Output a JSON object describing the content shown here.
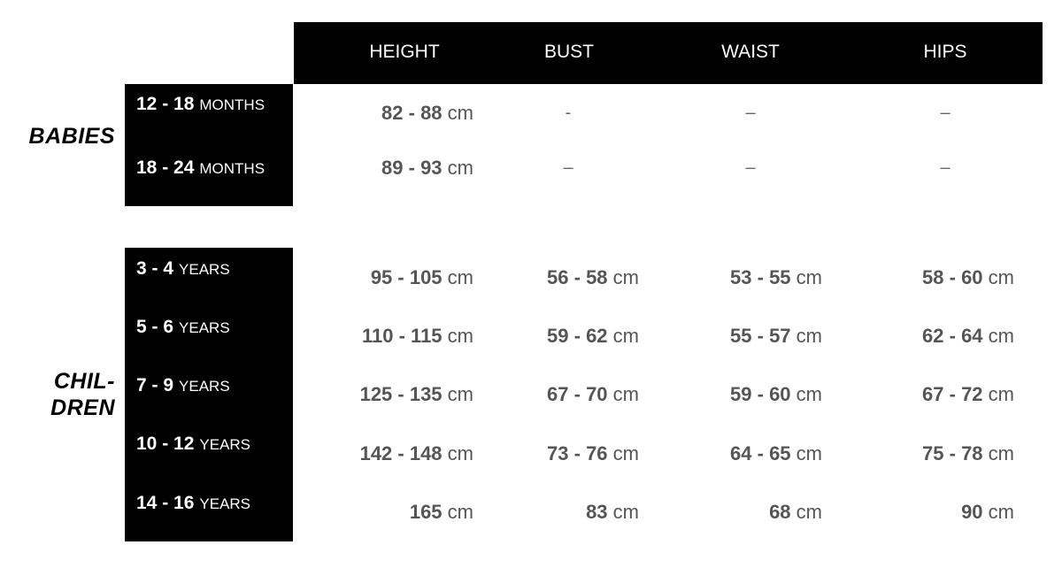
{
  "columns": [
    "HEIGHT",
    "BUST",
    "WAIST",
    "HIPS"
  ],
  "unit": "cm",
  "groups": [
    {
      "label": "BABIES",
      "rows": [
        {
          "age": "12 - 18",
          "unit": "MONTHS",
          "values": [
            "82 - 88",
            "-",
            "–",
            "–"
          ]
        },
        {
          "age": "18 - 24",
          "unit": "MONTHS",
          "values": [
            "89 - 93",
            "–",
            "–",
            "–"
          ]
        }
      ]
    },
    {
      "label": "CHIL-\nDREN",
      "rows": [
        {
          "age": "3 - 4",
          "unit": "YEARS",
          "values": [
            "95 - 105",
            "56 - 58",
            "53 - 55",
            "58 - 60"
          ]
        },
        {
          "age": "5 - 6",
          "unit": "YEARS",
          "values": [
            "110 - 115",
            "59 - 62",
            "55 - 57",
            "62 - 64"
          ]
        },
        {
          "age": "7 - 9",
          "unit": "YEARS",
          "values": [
            "125 - 135",
            "67 - 70",
            "59 - 60",
            "67 - 72"
          ]
        },
        {
          "age": "10 - 12",
          "unit": "YEARS",
          "values": [
            "142 - 148",
            "73 - 76",
            "64 - 65",
            "75 - 78"
          ]
        },
        {
          "age": "14 - 16",
          "unit": "YEARS",
          "values": [
            "165",
            "83",
            "68",
            "90"
          ]
        }
      ]
    }
  ]
}
